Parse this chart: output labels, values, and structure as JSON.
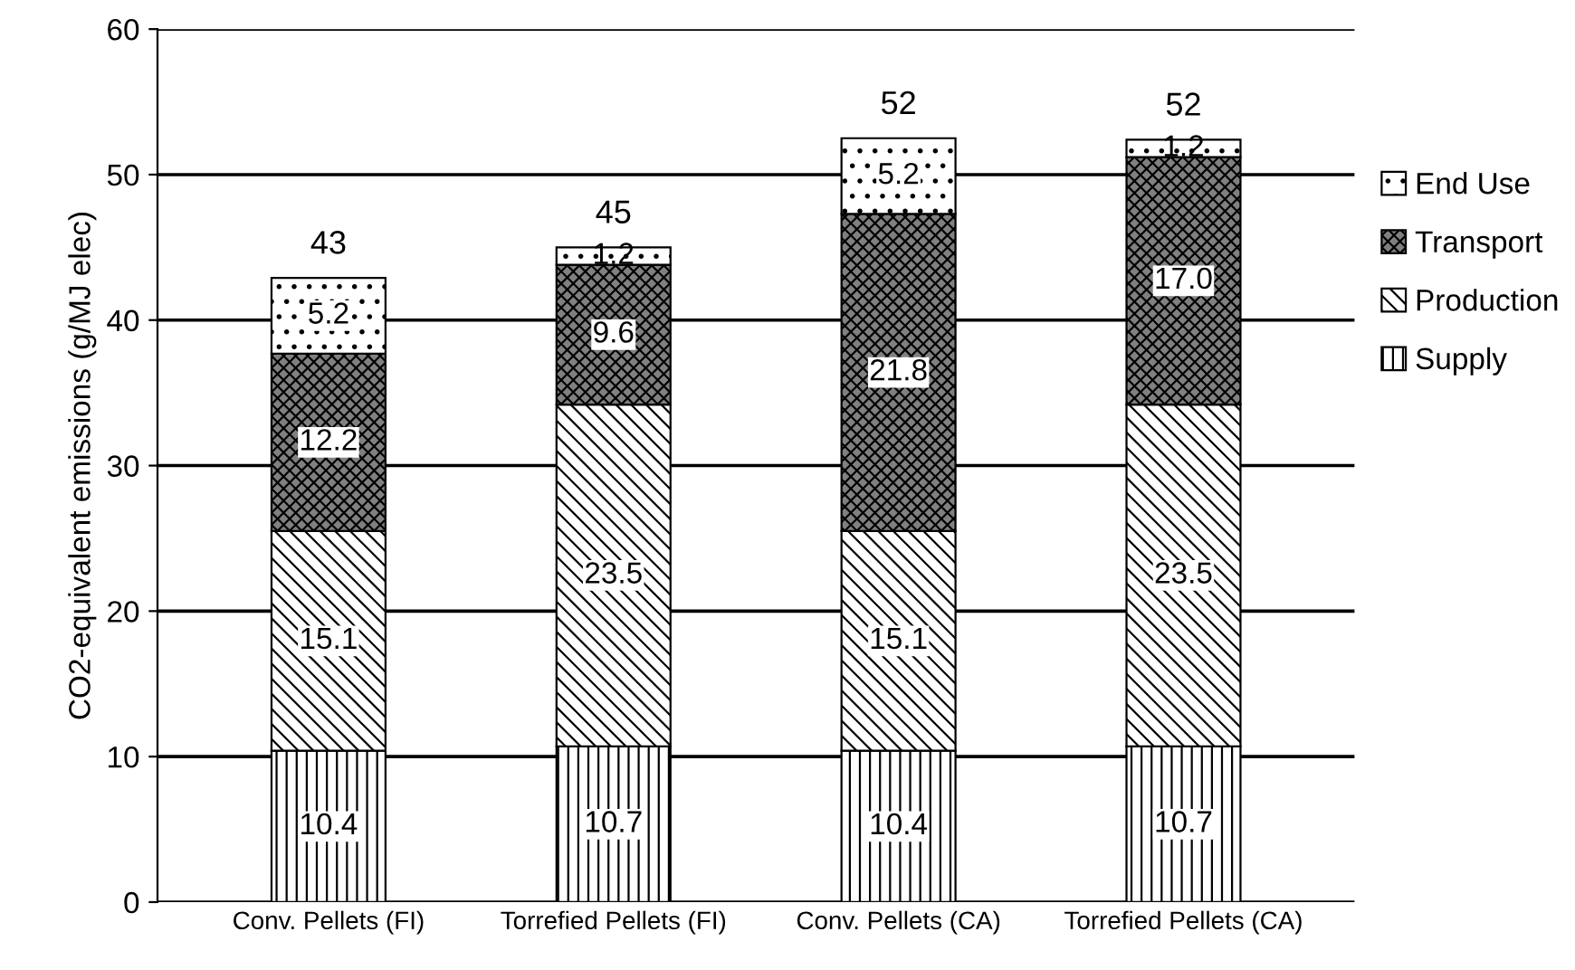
{
  "chart_data": {
    "type": "bar",
    "stacked": true,
    "ylabel": "CO2-equivalent emissions (g/MJ elec)",
    "categories": [
      "Conv. Pellets (FI)",
      "Torrefied Pellets (FI)",
      "Conv. Pellets (CA)",
      "Torrefied Pellets (CA)"
    ],
    "series": [
      {
        "name": "Supply",
        "color": "#000000",
        "values": [
          10.4,
          10.7,
          10.4,
          10.7
        ],
        "value_labels": [
          "10.4",
          "10.7",
          "10.4",
          "10.7"
        ]
      },
      {
        "name": "Production",
        "color": "#000000",
        "values": [
          15.1,
          23.5,
          15.1,
          23.5
        ],
        "value_labels": [
          "15.1",
          "23.5",
          "15.1",
          "23.5"
        ]
      },
      {
        "name": "Transport",
        "color": "#000000",
        "values": [
          12.2,
          9.6,
          21.8,
          17.0
        ],
        "value_labels": [
          "12.2",
          "9.6",
          "21.8",
          "17.0"
        ]
      },
      {
        "name": "End Use",
        "color": "#000000",
        "values": [
          5.2,
          1.2,
          5.2,
          1.2
        ],
        "value_labels": [
          "5.2",
          "1.2",
          "5.2",
          "1.2"
        ]
      }
    ],
    "totals": [
      "43",
      "45",
      "52",
      "52"
    ],
    "ylim": [
      0,
      60
    ],
    "yticks": [
      0,
      10,
      20,
      30,
      40,
      50,
      60
    ],
    "grid": "y",
    "legend": "right"
  }
}
